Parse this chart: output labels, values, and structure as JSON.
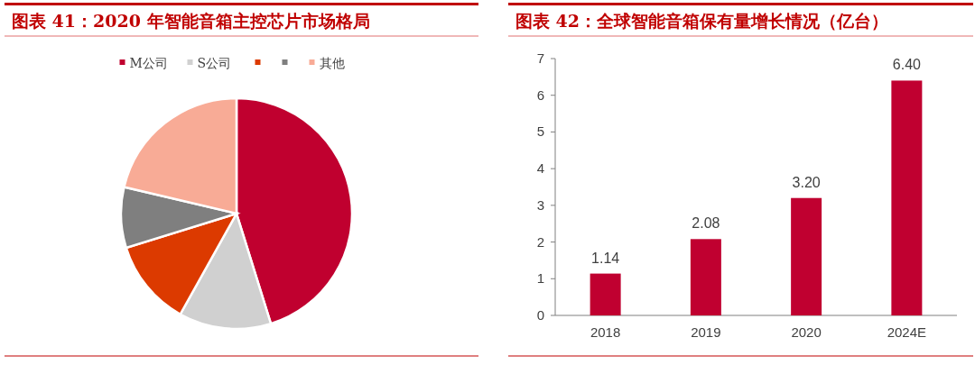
{
  "chart_data": [
    {
      "type": "pie",
      "title": "图表 41：2020 年智能音箱主控芯片市场格局",
      "categories": [
        "M公司",
        "S公司",
        null,
        null,
        "其他"
      ],
      "values": [
        45.2,
        12.9,
        12.1,
        8.5,
        21.3
      ],
      "colors": [
        "#c0002f",
        "#d0d0d0",
        "#dc3a00",
        "#7f7f7f",
        "#f8ab96"
      ],
      "legend": "top"
    },
    {
      "type": "bar",
      "title": "图表 42：全球智能音箱保有量增长情况（亿台）",
      "categories": [
        "2018",
        "2019",
        "2020",
        "2024E"
      ],
      "values": [
        1.14,
        2.08,
        3.2,
        6.4
      ],
      "value_labels": [
        "1.14",
        "2.08",
        "3.20",
        "6.40"
      ],
      "color": "#c00030",
      "ylim": [
        0,
        7
      ],
      "yticks": [
        0,
        1,
        2,
        3,
        4,
        5,
        6,
        7
      ]
    }
  ]
}
